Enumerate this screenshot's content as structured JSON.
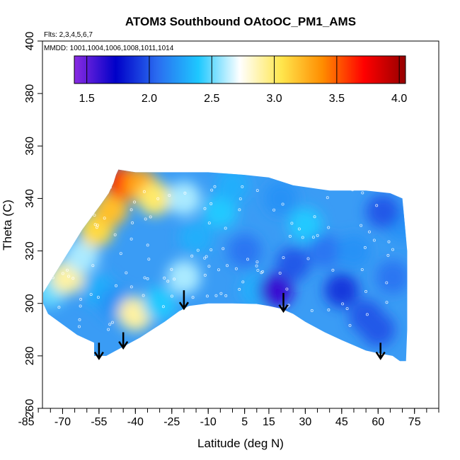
{
  "chart_data": {
    "type": "heatmap",
    "title": "ATOM3 Southbound OAtoOC_PM1_AMS",
    "flights_label": "Flts: 2,3,4,5,6,7",
    "mmdd_label": "MMDD: 1001,1004,1006,1008,1011,1014",
    "xlabel": "Latitude (deg N)",
    "ylabel": "Theta (C)",
    "xlim": [
      -85,
      85
    ],
    "ylim": [
      260,
      400
    ],
    "x_ticks": [
      -85,
      -70,
      -55,
      -40,
      -25,
      -10,
      5,
      15,
      30,
      45,
      60,
      75
    ],
    "x_tick_labels": [
      "-85",
      "-70",
      "-55",
      "-40",
      "-25",
      "-10",
      "5",
      "15",
      "30",
      "45",
      "60",
      "75"
    ],
    "x_minor_step": 5,
    "y_ticks": [
      260,
      280,
      300,
      320,
      340,
      360,
      380,
      400
    ],
    "y_tick_labels": [
      "260",
      "280",
      "300",
      "320",
      "340",
      "360",
      "380",
      "400"
    ],
    "colorbar": {
      "range": [
        1.4,
        4.05
      ],
      "ticks": [
        1.5,
        2.0,
        2.5,
        3.0,
        3.5,
        4.0
      ],
      "tick_labels": [
        "1.5",
        "2.0",
        "2.5",
        "3.0",
        "3.5",
        "4.0"
      ],
      "colors": [
        "#8a2be2",
        "#0000c8",
        "#2a6cf0",
        "#1ec8ff",
        "#ffffff",
        "#ffe64d",
        "#ff8c00",
        "#ff0000",
        "#960000"
      ]
    },
    "field_outline": [
      [
        -78,
        304
      ],
      [
        -74,
        310
      ],
      [
        -70,
        316
      ],
      [
        -66,
        322
      ],
      [
        -62,
        328
      ],
      [
        -58,
        333
      ],
      [
        -54,
        338
      ],
      [
        -51,
        342
      ],
      [
        -49,
        346
      ],
      [
        -48,
        349
      ],
      [
        -47,
        351
      ],
      [
        -40,
        350
      ],
      [
        -25,
        350
      ],
      [
        -10,
        350
      ],
      [
        5,
        349
      ],
      [
        15,
        348
      ],
      [
        25,
        345
      ],
      [
        40,
        343
      ],
      [
        55,
        343
      ],
      [
        65,
        342
      ],
      [
        70,
        340
      ],
      [
        71,
        330
      ],
      [
        72,
        320
      ],
      [
        72,
        310
      ],
      [
        72,
        300
      ],
      [
        72,
        290
      ],
      [
        71.5,
        278
      ],
      [
        69,
        278
      ],
      [
        66,
        280
      ],
      [
        60,
        281
      ],
      [
        55,
        282
      ],
      [
        50,
        284
      ],
      [
        45,
        286
      ],
      [
        38,
        289
      ],
      [
        30,
        293
      ],
      [
        25,
        296
      ],
      [
        20,
        298
      ],
      [
        15,
        299
      ],
      [
        10,
        299.8
      ],
      [
        0,
        300
      ],
      [
        -10,
        300
      ],
      [
        -18,
        299
      ],
      [
        -22,
        297
      ],
      [
        -28,
        293
      ],
      [
        -33,
        290
      ],
      [
        -38,
        287
      ],
      [
        -42,
        285
      ],
      [
        -46,
        283
      ],
      [
        -50,
        281
      ],
      [
        -52,
        280
      ],
      [
        -57,
        280
      ],
      [
        -57,
        285
      ],
      [
        -64,
        288
      ],
      [
        -70,
        292
      ],
      [
        -76,
        296
      ],
      [
        -78,
        300
      ]
    ],
    "field_cells": [
      {
        "lat": -75,
        "theta": 305,
        "value": 2.5
      },
      {
        "lat": -68,
        "theta": 310,
        "value": 2.9
      },
      {
        "lat": -62,
        "theta": 318,
        "value": 2.6
      },
      {
        "lat": -56,
        "theta": 328,
        "value": 3.1
      },
      {
        "lat": -50,
        "theta": 336,
        "value": 3.2
      },
      {
        "lat": -45,
        "theta": 346,
        "value": 3.6
      },
      {
        "lat": -38,
        "theta": 345,
        "value": 3.3
      },
      {
        "lat": -32,
        "theta": 340,
        "value": 3.0
      },
      {
        "lat": -55,
        "theta": 305,
        "value": 2.3
      },
      {
        "lat": -48,
        "theta": 300,
        "value": 2.2
      },
      {
        "lat": -40,
        "theta": 296,
        "value": 2.9
      },
      {
        "lat": -30,
        "theta": 300,
        "value": 2.4
      },
      {
        "lat": -20,
        "theta": 310,
        "value": 2.6
      },
      {
        "lat": -15,
        "theta": 325,
        "value": 2.3
      },
      {
        "lat": -20,
        "theta": 340,
        "value": 2.6
      },
      {
        "lat": -5,
        "theta": 335,
        "value": 2.4
      },
      {
        "lat": 5,
        "theta": 320,
        "value": 2.1
      },
      {
        "lat": 10,
        "theta": 305,
        "value": 2.3
      },
      {
        "lat": 18,
        "theta": 305,
        "value": 1.6
      },
      {
        "lat": 25,
        "theta": 315,
        "value": 2.0
      },
      {
        "lat": 30,
        "theta": 330,
        "value": 2.4
      },
      {
        "lat": 38,
        "theta": 320,
        "value": 2.1
      },
      {
        "lat": 45,
        "theta": 305,
        "value": 1.9
      },
      {
        "lat": 50,
        "theta": 320,
        "value": 2.2
      },
      {
        "lat": 55,
        "theta": 295,
        "value": 2.0
      },
      {
        "lat": 60,
        "theta": 290,
        "value": 2.0
      },
      {
        "lat": 66,
        "theta": 310,
        "value": 2.1
      },
      {
        "lat": 70,
        "theta": 330,
        "value": 2.2
      },
      {
        "lat": 62,
        "theta": 335,
        "value": 2.0
      },
      {
        "lat": 0,
        "theta": 345,
        "value": 2.3
      },
      {
        "lat": 20,
        "theta": 340,
        "value": 2.2
      }
    ],
    "arrows": [
      {
        "lat": -55,
        "theta_top": 285,
        "theta_tip": 279
      },
      {
        "lat": -45,
        "theta_top": 289,
        "theta_tip": 283
      },
      {
        "lat": -20,
        "theta_top": 305,
        "theta_tip": 298
      },
      {
        "lat": 21,
        "theta_top": 304,
        "theta_tip": 297
      },
      {
        "lat": 61,
        "theta_top": 285,
        "theta_tip": 279
      }
    ]
  }
}
